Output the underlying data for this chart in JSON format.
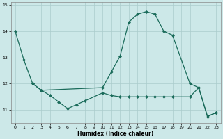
{
  "xlabel": "Humidex (Indice chaleur)",
  "background_color": "#cce8e8",
  "grid_color": "#aacccc",
  "line_color": "#1a6b5a",
  "ylim": [
    10.5,
    15.1
  ],
  "xlim": [
    -0.5,
    23.5
  ],
  "yticks": [
    11,
    12,
    13,
    14,
    15
  ],
  "xticks": [
    0,
    1,
    2,
    3,
    4,
    5,
    6,
    7,
    8,
    9,
    10,
    11,
    12,
    13,
    14,
    15,
    16,
    17,
    18,
    19,
    20,
    21,
    22,
    23
  ],
  "line1_x": [
    0,
    1,
    2,
    3,
    4,
    5,
    6,
    7,
    8,
    10,
    11,
    12,
    13,
    14,
    15,
    16,
    17,
    18,
    20,
    21,
    22,
    23
  ],
  "line1_y": [
    14.0,
    12.9,
    12.0,
    11.75,
    11.55,
    11.3,
    11.05,
    11.2,
    11.35,
    11.65,
    11.55,
    11.5,
    11.5,
    11.5,
    11.5,
    11.5,
    11.5,
    11.5,
    11.5,
    11.85,
    10.75,
    10.9
  ],
  "line2_x": [
    2,
    3,
    10,
    11,
    12,
    13,
    14,
    15,
    16,
    17,
    18,
    20,
    21,
    22,
    23
  ],
  "line2_y": [
    12.0,
    11.75,
    11.85,
    12.45,
    13.05,
    14.35,
    14.65,
    14.75,
    14.65,
    14.0,
    13.85,
    12.0,
    11.85,
    10.75,
    10.9
  ]
}
